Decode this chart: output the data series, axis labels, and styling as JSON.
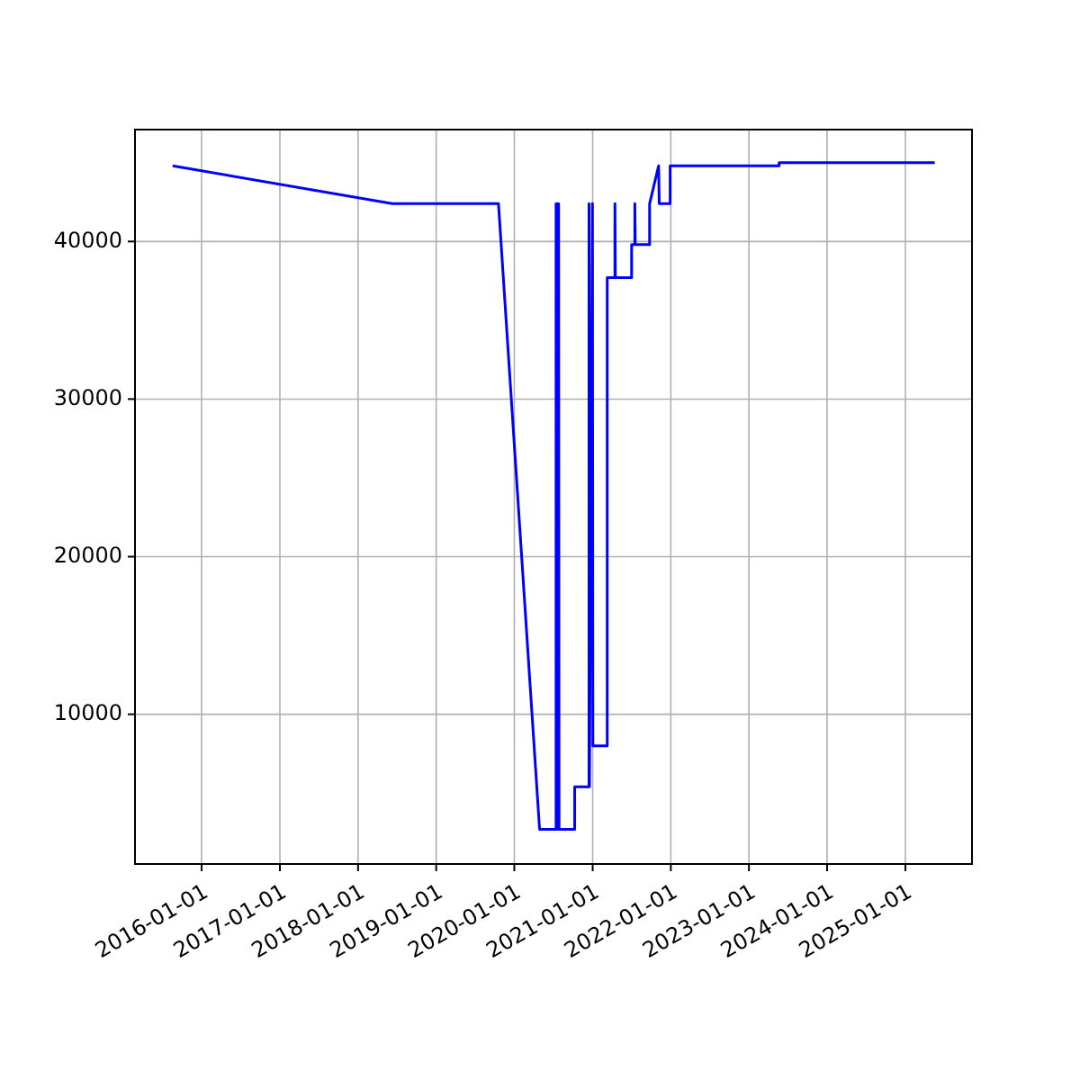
{
  "chart_data": {
    "type": "line",
    "x": [
      "2015-08-19",
      "2018-06-10",
      "2019-10-19",
      "2020-04-28",
      "2020-07-14",
      "2020-07-14",
      "2020-07-17",
      "2020-07-20",
      "2020-07-23",
      "2020-07-26",
      "2020-07-28",
      "2020-10-09",
      "2020-10-09",
      "2020-12-15",
      "2020-12-15",
      "2020-12-17",
      "2020-12-31",
      "2021-01-02",
      "2021-03-10",
      "2021-03-10",
      "2021-04-15",
      "2021-04-15",
      "2021-04-17",
      "2021-07-02",
      "2021-07-02",
      "2021-07-17",
      "2021-07-17",
      "2021-07-19",
      "2021-09-24",
      "2021-09-24",
      "2021-11-05",
      "2021-11-08",
      "2021-12-29",
      "2021-12-29",
      "2023-05-22",
      "2023-05-22",
      "2025-05-18"
    ],
    "series": [
      {
        "color": "#0000ff",
        "values": [
          44800,
          42400,
          42400,
          2700,
          2700,
          42400,
          2700,
          42400,
          2700,
          42400,
          2700,
          2700,
          5400,
          5400,
          42400,
          5400,
          42400,
          8000,
          8000,
          37700,
          37700,
          42400,
          37700,
          37700,
          39800,
          39800,
          42400,
          39800,
          39800,
          42400,
          44800,
          42400,
          42400,
          44800,
          44800,
          45000,
          45000
        ]
      }
    ],
    "xlim": [
      "2015-02-24",
      "2025-11-08"
    ],
    "xticks": [
      "2016-01-01",
      "2017-01-01",
      "2018-01-01",
      "2019-01-01",
      "2020-01-01",
      "2021-01-01",
      "2022-01-01",
      "2023-01-01",
      "2024-01-01",
      "2025-01-01"
    ],
    "ylim": [
      500,
      47100
    ],
    "yticks": [
      10000,
      20000,
      30000,
      40000
    ],
    "grid": true
  }
}
